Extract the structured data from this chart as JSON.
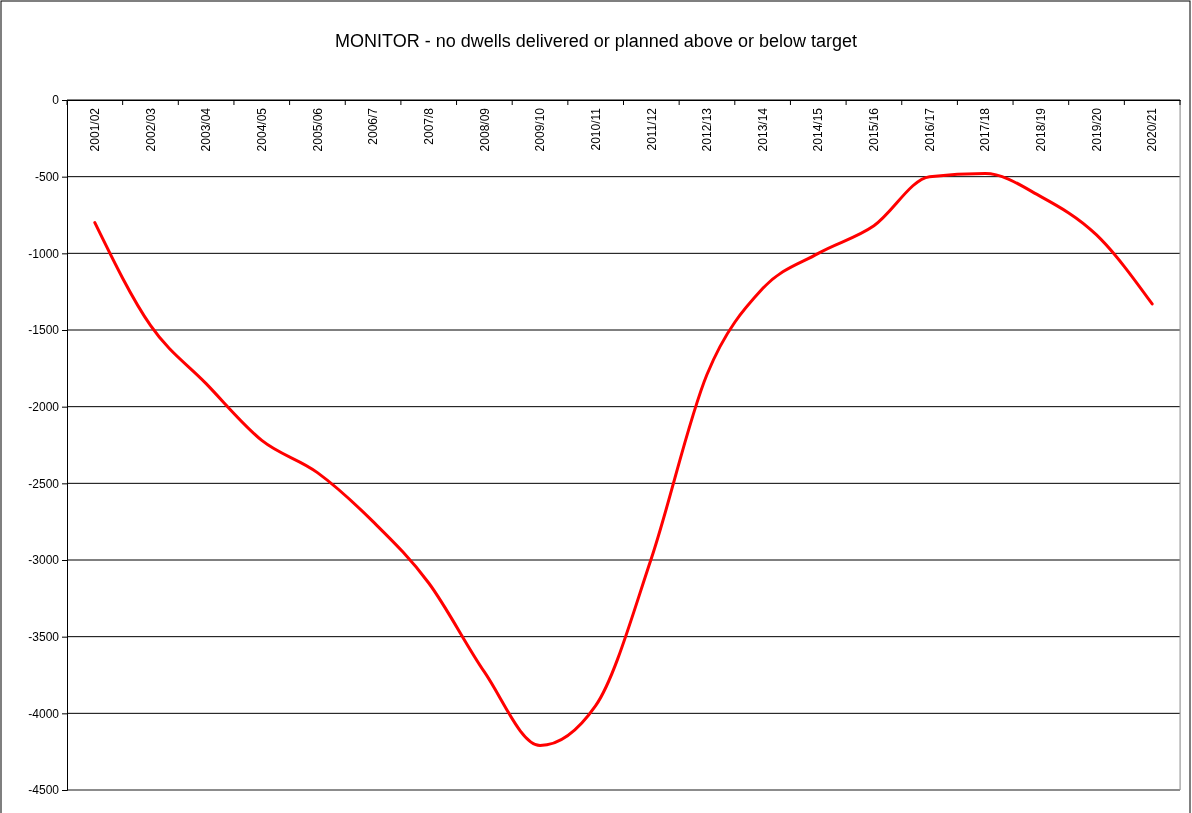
{
  "chart_data": {
    "type": "line",
    "title": "MONITOR - no dwells delivered or planned above or below target",
    "categories": [
      "2001/02",
      "2002/03",
      "2003/04",
      "2004/05",
      "2005/06",
      "2006/7",
      "2007/8",
      "2008/09",
      "2009/10",
      "2010/11",
      "2011/12",
      "2012/13",
      "2013/14",
      "2014/15",
      "2015/16",
      "2016/17",
      "2017/18",
      "2018/19",
      "2019/20",
      "2020/21"
    ],
    "series": [
      {
        "color": "#ff0000",
        "values": [
          -800,
          -1470,
          -1850,
          -2220,
          -2430,
          -2750,
          -3150,
          -3730,
          -4210,
          -3950,
          -2990,
          -1790,
          -1230,
          -1000,
          -820,
          -500,
          -480,
          -630,
          -880,
          -1330
        ]
      }
    ],
    "ylim": [
      -4500,
      0
    ],
    "yticks": [
      -4500,
      -4000,
      -3500,
      -3000,
      -2500,
      -2000,
      -1500,
      -1000,
      -500,
      0
    ],
    "grid": "y",
    "marker": "none",
    "line_style": "solid"
  }
}
